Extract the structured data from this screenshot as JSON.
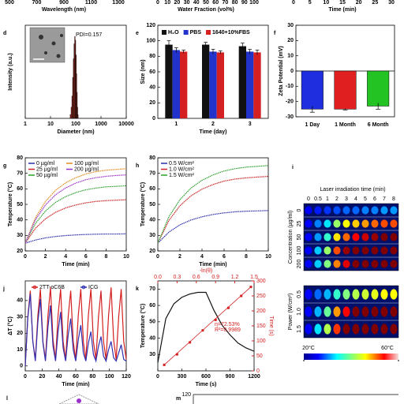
{
  "chart_data": [
    {
      "type": "axis-strip",
      "xlabel": "Wavelength (nm)",
      "xlim": [
        500,
        1300
      ],
      "xticks": [
        500,
        700,
        900,
        1100,
        1300
      ]
    },
    {
      "type": "axis-strip",
      "xlabel": "Water Fraction (vol%)",
      "xlim": [
        0,
        100
      ],
      "xticks": [
        0,
        10,
        20,
        30,
        40,
        50,
        60,
        70,
        80,
        90,
        100
      ]
    },
    {
      "type": "axis-strip",
      "xlabel": "Time (min)",
      "xlim": [
        0,
        30
      ],
      "xticks": [
        0,
        5,
        10,
        15,
        20,
        25,
        30
      ]
    },
    {
      "type": "histogram",
      "panel": "d",
      "annotation": "PDI=0.157",
      "xlabel": "Diameter (nm)",
      "ylabel": "Intensity (a.u.)",
      "log_x": true,
      "xlim": [
        1,
        10000
      ],
      "xticks": [
        1,
        10,
        100,
        1000,
        10000
      ],
      "ylim": [
        0,
        25
      ],
      "color": "#c0392b",
      "bins": [
        60,
        65,
        70,
        75,
        80,
        85,
        90,
        95,
        100,
        105,
        110,
        115,
        120,
        125
      ],
      "counts": [
        1,
        3,
        6,
        11,
        16,
        20,
        22,
        21,
        17,
        12,
        7,
        3,
        1
      ]
    },
    {
      "type": "grouped-bar",
      "panel": "e",
      "xlabel": "Time (day)",
      "ylabel": "Size (nm)",
      "categories": [
        "1",
        "2",
        "3"
      ],
      "ylim": [
        0,
        120
      ],
      "yticks": [
        0,
        20,
        40,
        60,
        80,
        100,
        120
      ],
      "series": [
        {
          "name": "H₂O",
          "color": "#111111",
          "values": [
            95,
            95,
            93
          ],
          "errors": [
            5,
            3,
            4
          ]
        },
        {
          "name": "PBS",
          "color": "#2233cc",
          "values": [
            88,
            86,
            86
          ],
          "errors": [
            3,
            3,
            3
          ]
        },
        {
          "name": "1640+10%FBS",
          "color": "#d42020",
          "values": [
            86,
            85,
            85
          ],
          "errors": [
            2,
            2,
            3
          ]
        }
      ]
    },
    {
      "type": "bar",
      "panel": "f",
      "ylabel": "Zeta Potential (mV)",
      "categories": [
        "1 Day",
        "1 Month",
        "6 Month"
      ],
      "values": [
        -25,
        -25,
        -23
      ],
      "errors": [
        2,
        0.5,
        2
      ],
      "colors": [
        "#1f2fe0",
        "#e02020",
        "#22c322"
      ],
      "ylim": [
        -30,
        30
      ],
      "yticks": [
        -30,
        -20,
        -10,
        0,
        10,
        20,
        30
      ]
    },
    {
      "type": "line",
      "panel": "g",
      "xlabel": "Time (min)",
      "ylabel": "Temperature (°C)",
      "legend": "top-left",
      "x": [
        0,
        1,
        2,
        3,
        4,
        5,
        6,
        7,
        8,
        9,
        10
      ],
      "xlim": [
        0,
        10
      ],
      "xticks": [
        0,
        2,
        4,
        6,
        8,
        10
      ],
      "ylim": [
        20,
        80
      ],
      "yticks": [
        20,
        30,
        40,
        50,
        60,
        70,
        80
      ],
      "series": [
        {
          "name": "0 µg/ml",
          "color": "#2a2aa8",
          "values": [
            25,
            27,
            28.4,
            29.3,
            29.9,
            30.3,
            30.6,
            30.8,
            30.9,
            30.9,
            31
          ]
        },
        {
          "name": "25 µg/ml",
          "color": "#cc2222",
          "values": [
            25,
            34.5,
            40.7,
            44.9,
            47.7,
            49.6,
            51,
            51.9,
            52.4,
            52.7,
            53
          ]
        },
        {
          "name": "50 µg/ml",
          "color": "#2ea02e",
          "values": [
            25,
            37.6,
            45.7,
            51.3,
            55,
            57.6,
            59.4,
            60.5,
            61.3,
            61.6,
            62
          ]
        },
        {
          "name": "100 µg/ml",
          "color": "#e08a1e",
          "values": [
            25,
            41.3,
            51.9,
            59.1,
            63.9,
            67.2,
            69.6,
            71.1,
            72,
            72.5,
            73
          ]
        },
        {
          "name": "200 µg/ml",
          "color": "#9b30c8",
          "values": [
            25,
            40,
            49.6,
            56.2,
            60.6,
            63.7,
            65.9,
            67.2,
            68.1,
            68.6,
            69
          ]
        }
      ]
    },
    {
      "type": "line",
      "panel": "h",
      "xlabel": "Time (min)",
      "ylabel": "Temperature (°C)",
      "legend": "top-left",
      "x": [
        0,
        1,
        2,
        3,
        4,
        5,
        6,
        7,
        8,
        9,
        10
      ],
      "xlim": [
        0,
        10
      ],
      "xticks": [
        0,
        2,
        4,
        6,
        8,
        10
      ],
      "ylim": [
        20,
        80
      ],
      "yticks": [
        20,
        30,
        40,
        50,
        60,
        70,
        80
      ],
      "series": [
        {
          "name": "0.5 W/cm²",
          "color": "#2a2aa8",
          "values": [
            25,
            32.1,
            36.8,
            39.9,
            42,
            43.5,
            44.5,
            45.2,
            45.6,
            45.8,
            46
          ]
        },
        {
          "name": "1.0 W/cm²",
          "color": "#cc2222",
          "values": [
            25,
            39.6,
            49.1,
            55.5,
            59.8,
            62.8,
            65,
            66.3,
            67.1,
            67.6,
            68
          ]
        },
        {
          "name": "1.5 W/cm²",
          "color": "#2ea02e",
          "values": [
            25,
            42,
            53,
            60.5,
            65.5,
            69,
            71.5,
            73,
            74,
            74.5,
            75
          ]
        }
      ]
    },
    {
      "type": "heatmap",
      "panel": "i",
      "title": "Laser irradiation time (min)",
      "columns": [
        "0",
        "0.5",
        "1",
        "2",
        "3",
        "4",
        "5",
        "6",
        "7",
        "8"
      ],
      "clim": [
        20,
        60
      ],
      "cticks": [
        {
          "value": 20,
          "label": "20°C"
        },
        {
          "value": 60,
          "label": "60°C"
        }
      ],
      "groups": [
        {
          "ylabel": "Concentration (µg/ml)",
          "rows": [
            "0",
            "25",
            "50",
            "100",
            "200"
          ],
          "values": [
            [
              25,
              26,
              27,
              28,
              29,
              29,
              30,
              30,
              31,
              31
            ],
            [
              25,
              30,
              34,
              41,
              45,
              47,
              49,
              51,
              52,
              52
            ],
            [
              25,
              31,
              37,
              46,
              51,
              55,
              57,
              59,
              60,
              61
            ],
            [
              25,
              33,
              41,
              52,
              59,
              64,
              67,
              69,
              71,
              72
            ],
            [
              25,
              33,
              40,
              50,
              56,
              61,
              64,
              66,
              67,
              68
            ]
          ]
        },
        {
          "ylabel": "Power (W/cm²)",
          "rows": [
            "0.5",
            "1.0",
            "1.5"
          ],
          "values": [
            [
              25,
              29,
              32,
              37,
              40,
              42,
              43,
              44,
              45,
              45
            ],
            [
              25,
              32,
              39,
              49,
              55,
              60,
              62,
              65,
              66,
              67
            ],
            [
              25,
              34,
              42,
              53,
              60,
              65,
              69,
              71,
              73,
              74
            ]
          ]
        }
      ]
    },
    {
      "type": "line",
      "panel": "j",
      "xlabel": "Time (min)",
      "ylabel": "ΔT (°C)",
      "legend": "top",
      "x": [
        0,
        3,
        6,
        9,
        12,
        15,
        18,
        21,
        24,
        27,
        30,
        33,
        36,
        39,
        42,
        45,
        48,
        51,
        54,
        57,
        60,
        63,
        66,
        69,
        72,
        75,
        78,
        81,
        84,
        87,
        90,
        93,
        96,
        99,
        102,
        105,
        108,
        111,
        114,
        117,
        120
      ],
      "xlim": [
        0,
        120
      ],
      "xticks": [
        0,
        20,
        40,
        60,
        80,
        100,
        120
      ],
      "ylim": [
        -3,
        52
      ],
      "yticks": [
        0,
        10,
        20,
        30,
        40
      ],
      "series": [
        {
          "name": "2TT-oC6B",
          "color": "#d42020",
          "values": [
            0,
            30,
            46,
            15,
            4,
            31,
            47,
            15,
            4,
            31,
            48,
            16,
            4,
            31,
            47,
            15,
            4,
            30,
            46,
            15,
            4,
            31,
            47,
            15,
            4,
            31,
            47,
            15,
            4,
            30,
            46,
            15,
            4,
            31,
            48,
            16,
            4,
            30,
            47,
            15,
            4
          ]
        },
        {
          "name": "ICG",
          "color": "#3030b0",
          "values": [
            0,
            29,
            44,
            15,
            3,
            27,
            41,
            14,
            3,
            24,
            37,
            12,
            3,
            21,
            33,
            11,
            3,
            19,
            29,
            10,
            3,
            16,
            25,
            8,
            3,
            14,
            21,
            7,
            3,
            12,
            18,
            6,
            3,
            10,
            15,
            5,
            3,
            8,
            13,
            4,
            3
          ]
        }
      ]
    },
    {
      "type": "dual",
      "panel": "k",
      "xlabel": "Time (s)",
      "ylabel": "Temperature (°C)",
      "x": [
        0,
        100,
        200,
        300,
        400,
        500,
        600,
        700,
        800,
        900,
        1000,
        1100,
        1200
      ],
      "values": [
        25,
        52,
        61,
        65,
        67,
        68,
        68,
        57,
        48,
        42,
        37,
        34,
        32
      ],
      "color": "#111111",
      "xlim": [
        0,
        1200
      ],
      "xticks": [
        0,
        300,
        600,
        900,
        1200
      ],
      "ylim": [
        20,
        75
      ],
      "yticks": [
        30,
        40,
        50,
        60,
        70
      ],
      "x2label": "-ln(θ)",
      "x2lim": [
        0,
        1.5
      ],
      "x2ticks": [
        {
          "value": 0,
          "label": "0.0"
        },
        {
          "value": 0.3,
          "label": "0.3"
        },
        {
          "value": 0.6,
          "label": "0.6"
        },
        {
          "value": 0.9,
          "label": "0.9"
        },
        {
          "value": 1.2,
          "label": "1.2"
        },
        {
          "value": 1.5,
          "label": "1.5"
        }
      ],
      "y2label": "Time (s)",
      "y2lim": [
        0,
        300
      ],
      "y2ticks": [
        0,
        50,
        100,
        150,
        200,
        250,
        300
      ],
      "fit": {
        "color": "#d42020",
        "x": [
          0.1,
          0.3,
          0.5,
          0.7,
          0.9,
          1.1,
          1.3,
          1.45
        ],
        "values": [
          20,
          55,
          95,
          135,
          170,
          210,
          250,
          280
        ]
      },
      "annotations": [
        "η=72.53%",
        "R²=0.9989"
      ]
    },
    {
      "type": "partial",
      "panel": "l"
    },
    {
      "type": "partial",
      "panel": "m",
      "yticks": [
        120
      ]
    }
  ]
}
